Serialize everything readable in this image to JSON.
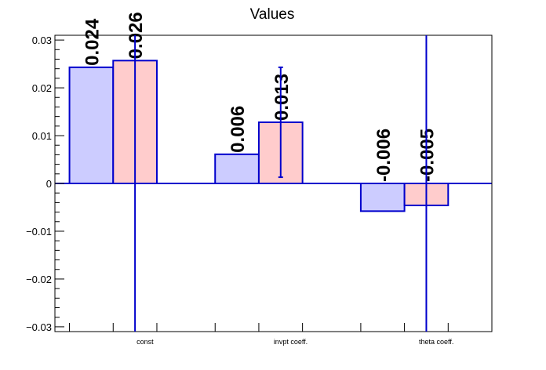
{
  "chart_data": {
    "type": "bar",
    "title": "Values",
    "xlabel": "",
    "ylabel": "",
    "categories": [
      "const",
      "invpt coeff.",
      "theta coeff."
    ],
    "ylim": [
      -0.031,
      0.031
    ],
    "yticks": [
      -0.03,
      -0.02,
      -0.01,
      0,
      0.01,
      0.02,
      0.03
    ],
    "ytick_labels": [
      "−0.03",
      "−0.02",
      "−0.01",
      "0",
      "0.01",
      "0.02",
      "0.03"
    ],
    "grid": false,
    "series": [
      {
        "values": [
          0.0243,
          0.0061,
          -0.0058
        ],
        "labels": [
          "0.024",
          "0.006",
          "-0.006"
        ],
        "fill": "#ccccff",
        "stroke": "#0000cc",
        "errors": [
          0,
          0,
          0
        ]
      },
      {
        "values": [
          0.0257,
          0.0128,
          -0.0046
        ],
        "labels": [
          "0.026",
          "0.013",
          "-0.005"
        ],
        "fill": "#ffcccc",
        "stroke": "#0000cc",
        "errors": [
          0.12,
          0.0115,
          0.12
        ]
      }
    ],
    "axis_color": "#000000",
    "error_color": "#0000cc",
    "zero_line_color": "#0000cc"
  }
}
